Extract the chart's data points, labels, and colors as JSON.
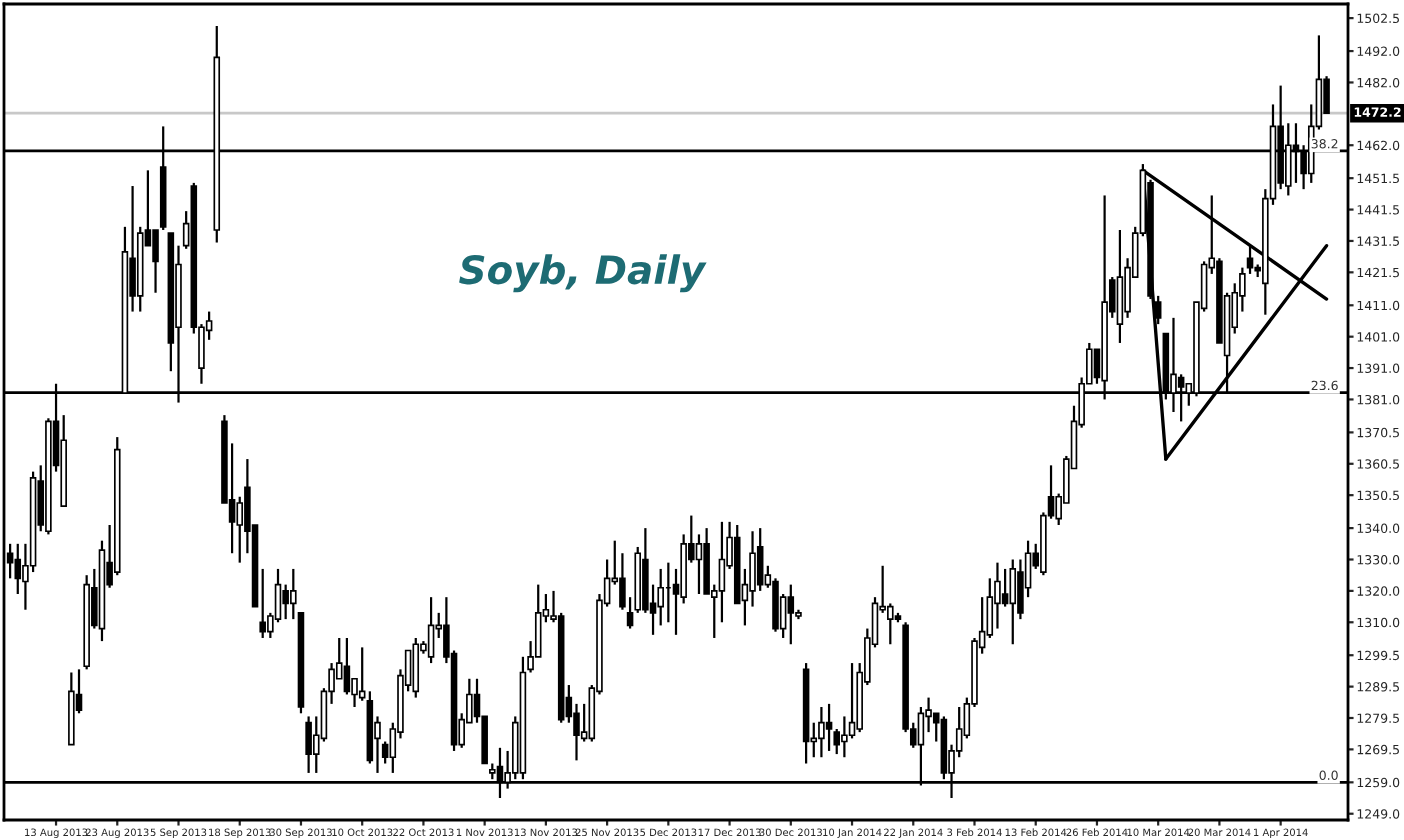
{
  "chart_data": {
    "type": "candlestick",
    "title": "Soyb, Daily",
    "categories": [
      null,
      null,
      null,
      null,
      null,
      null,
      "13 Aug 2013",
      null,
      null,
      null,
      null,
      null,
      null,
      null,
      "23 Aug 2013",
      null,
      null,
      null,
      null,
      null,
      null,
      null,
      "5 Sep 2013",
      null,
      null,
      null,
      null,
      null,
      null,
      null,
      "18 Sep 2013",
      null,
      null,
      null,
      null,
      null,
      null,
      null,
      "30 Sep 2013",
      null,
      null,
      null,
      null,
      null,
      null,
      null,
      "10 Oct 2013",
      null,
      null,
      null,
      null,
      null,
      null,
      null,
      "22 Oct 2013",
      null,
      null,
      null,
      null,
      null,
      null,
      null,
      "1 Nov 2013",
      null,
      null,
      null,
      null,
      null,
      null,
      null,
      "13 Nov 2013",
      null,
      null,
      null,
      null,
      null,
      null,
      null,
      "25 Nov 2013",
      null,
      null,
      null,
      null,
      null,
      null,
      null,
      "5 Dec 2013",
      null,
      null,
      null,
      null,
      null,
      null,
      null,
      "17 Dec 2013",
      null,
      null,
      null,
      null,
      null,
      null,
      null,
      "30 Dec 2013",
      null,
      null,
      null,
      null,
      null,
      null,
      null,
      "10 Jan 2014",
      null,
      null,
      null,
      null,
      null,
      null,
      null,
      "22 Jan 2014",
      null,
      null,
      null,
      null,
      null,
      null,
      null,
      "3 Feb 2014",
      null,
      null,
      null,
      null,
      null,
      null,
      null,
      "13 Feb 2014",
      null,
      null,
      null,
      null,
      null,
      null,
      null,
      "26 Feb 2014",
      null,
      null,
      null,
      null,
      null,
      null,
      null,
      "10 Mar 2014",
      null,
      null,
      null,
      null,
      null,
      null,
      null,
      "20 Mar 2014",
      null,
      null,
      null,
      null,
      null,
      null,
      null,
      "1 Apr 2014",
      null,
      null,
      null,
      null,
      null,
      null
    ],
    "ohlc": [
      [
        1332,
        1335,
        1324,
        1329
      ],
      [
        1330,
        1335,
        1319,
        1324
      ],
      [
        1323,
        1335,
        1314,
        1328
      ],
      [
        1328,
        1358,
        1326,
        1356
      ],
      [
        1355,
        1360,
        1339,
        1341
      ],
      [
        1339,
        1375,
        1338,
        1374
      ],
      [
        1374,
        1386,
        1358,
        1360
      ],
      [
        1347,
        1376,
        1347,
        1368
      ],
      [
        1271,
        1294,
        1271,
        1288
      ],
      [
        1287,
        1295,
        1281,
        1282
      ],
      [
        1296,
        1325,
        1295,
        1322
      ],
      [
        1321,
        1327,
        1308,
        1309
      ],
      [
        1308,
        1336,
        1304,
        1333
      ],
      [
        1329,
        1341,
        1321,
        1322
      ],
      [
        1326,
        1369,
        1325,
        1365
      ],
      [
        1383,
        1436,
        1383,
        1428
      ],
      [
        1426,
        1449,
        1409,
        1414
      ],
      [
        1414,
        1436,
        1409,
        1434
      ],
      [
        1435,
        1454,
        1430,
        1430
      ],
      [
        1435,
        1435,
        1415,
        1425
      ],
      [
        1455,
        1468,
        1435,
        1436
      ],
      [
        1434,
        1434,
        1390,
        1399
      ],
      [
        1404,
        1430,
        1380,
        1424
      ],
      [
        1430,
        1441,
        1429,
        1437
      ],
      [
        1449,
        1450,
        1402,
        1404
      ],
      [
        1391,
        1405,
        1386,
        1404
      ],
      [
        1403,
        1409,
        1400,
        1406
      ],
      [
        1435,
        1500,
        1431,
        1490
      ],
      [
        1374,
        1376,
        1348,
        1348
      ],
      [
        1349,
        1367,
        1332,
        1342
      ],
      [
        1341,
        1350,
        1329,
        1348
      ],
      [
        1353,
        1362,
        1332,
        1339
      ],
      [
        1341,
        1341,
        1315,
        1315
      ],
      [
        1310,
        1327,
        1305,
        1307
      ],
      [
        1307,
        1313,
        1305,
        1312
      ],
      [
        1311,
        1327,
        1310,
        1322
      ],
      [
        1320,
        1322,
        1311,
        1316
      ],
      [
        1316,
        1327,
        1311,
        1320
      ],
      [
        1313,
        1313,
        1281,
        1283
      ],
      [
        1278,
        1280,
        1262,
        1268
      ],
      [
        1268,
        1280,
        1262,
        1274
      ],
      [
        1273,
        1289,
        1272,
        1288
      ],
      [
        1288,
        1297,
        1284,
        1295
      ],
      [
        1292,
        1305,
        1292,
        1297
      ],
      [
        1296,
        1305,
        1287,
        1288
      ],
      [
        1287,
        1292,
        1283,
        1292
      ],
      [
        1286,
        1302,
        1285,
        1288
      ],
      [
        1285,
        1288,
        1265,
        1266
      ],
      [
        1273,
        1280,
        1262,
        1278
      ],
      [
        1271,
        1272,
        1265,
        1267
      ],
      [
        1267,
        1278,
        1262,
        1276
      ],
      [
        1275,
        1295,
        1273,
        1293
      ],
      [
        1290,
        1301,
        1288,
        1301
      ],
      [
        1288,
        1305,
        1286,
        1303
      ],
      [
        1301,
        1304,
        1300,
        1303
      ],
      [
        1299,
        1318,
        1297,
        1309
      ],
      [
        1308,
        1313,
        1305,
        1309
      ],
      [
        1309,
        1318,
        1297,
        1299
      ],
      [
        1300,
        1301,
        1269,
        1271
      ],
      [
        1271,
        1281,
        1270,
        1279
      ],
      [
        1278,
        1292,
        1278,
        1287
      ],
      [
        1287,
        1292,
        1278,
        1280
      ],
      [
        1280,
        1280,
        1265,
        1265
      ],
      [
        1262,
        1265,
        1260,
        1263
      ],
      [
        1264,
        1270,
        1254,
        1259
      ],
      [
        1259,
        1269,
        1257,
        1262
      ],
      [
        1262,
        1280,
        1260,
        1278
      ],
      [
        1262,
        1299,
        1260,
        1294
      ],
      [
        1295,
        1304,
        1294,
        1299
      ],
      [
        1299,
        1322,
        1299,
        1313
      ],
      [
        1312,
        1319,
        1310,
        1314
      ],
      [
        1311,
        1320,
        1310,
        1312
      ],
      [
        1312,
        1313,
        1278,
        1279
      ],
      [
        1286,
        1290,
        1278,
        1280
      ],
      [
        1281,
        1284,
        1266,
        1274
      ],
      [
        1273,
        1284,
        1272,
        1275
      ],
      [
        1273,
        1290,
        1272,
        1289
      ],
      [
        1288,
        1319,
        1287,
        1317
      ],
      [
        1316,
        1330,
        1315,
        1324
      ],
      [
        1323,
        1336,
        1322,
        1324
      ],
      [
        1324,
        1332,
        1314,
        1315
      ],
      [
        1313,
        1318,
        1308,
        1309
      ],
      [
        1314,
        1334,
        1313,
        1332
      ],
      [
        1330,
        1340,
        1313,
        1314
      ],
      [
        1316,
        1322,
        1306,
        1313
      ],
      [
        1315,
        1327,
        1309,
        1321
      ],
      [
        1321,
        1329,
        1310,
        1321
      ],
      [
        1322,
        1327,
        1306,
        1319
      ],
      [
        1318,
        1338,
        1316,
        1335
      ],
      [
        1335,
        1344,
        1329,
        1330
      ],
      [
        1330,
        1338,
        1319,
        1335
      ],
      [
        1335,
        1340,
        1319,
        1319
      ],
      [
        1318,
        1322,
        1305,
        1320
      ],
      [
        1320,
        1342,
        1310,
        1330
      ],
      [
        1328,
        1342,
        1327,
        1337
      ],
      [
        1337,
        1341,
        1316,
        1316
      ],
      [
        1317,
        1327,
        1309,
        1322
      ],
      [
        1320,
        1339,
        1315,
        1332
      ],
      [
        1334,
        1340,
        1320,
        1322
      ],
      [
        1322,
        1328,
        1321,
        1325
      ],
      [
        1323,
        1324,
        1307,
        1308
      ],
      [
        1308,
        1319,
        1305,
        1318
      ],
      [
        1318,
        1322,
        1303,
        1313
      ],
      [
        1312,
        1314,
        1311,
        1313
      ],
      [
        1295,
        1297,
        1265,
        1272
      ],
      [
        1272,
        1278,
        1267,
        1273
      ],
      [
        1273,
        1283,
        1267,
        1278
      ],
      [
        1278,
        1284,
        1269,
        1276
      ],
      [
        1275,
        1276,
        1268,
        1271
      ],
      [
        1272,
        1280,
        1267,
        1274
      ],
      [
        1274,
        1297,
        1273,
        1278
      ],
      [
        1276,
        1297,
        1275,
        1294
      ],
      [
        1291,
        1308,
        1290,
        1305
      ],
      [
        1303,
        1318,
        1302,
        1316
      ],
      [
        1314,
        1328,
        1313,
        1315
      ],
      [
        1311,
        1316,
        1303,
        1315
      ],
      [
        1312,
        1313,
        1310,
        1311
      ],
      [
        1309,
        1310,
        1275,
        1276
      ],
      [
        1276,
        1278,
        1270,
        1271
      ],
      [
        1271,
        1283,
        1258,
        1281
      ],
      [
        1280,
        1286,
        1275,
        1282
      ],
      [
        1281,
        1281,
        1272,
        1278
      ],
      [
        1279,
        1280,
        1260,
        1262
      ],
      [
        1262,
        1271,
        1254,
        1269
      ],
      [
        1269,
        1283,
        1267,
        1276
      ],
      [
        1274,
        1286,
        1273,
        1284
      ],
      [
        1284,
        1305,
        1283,
        1304
      ],
      [
        1302,
        1318,
        1300,
        1307
      ],
      [
        1306,
        1324,
        1305,
        1318
      ],
      [
        1316,
        1329,
        1308,
        1323
      ],
      [
        1319,
        1327,
        1315,
        1316
      ],
      [
        1316,
        1330,
        1303,
        1327
      ],
      [
        1326,
        1330,
        1311,
        1313
      ],
      [
        1321,
        1336,
        1318,
        1332
      ],
      [
        1332,
        1335,
        1327,
        1328
      ],
      [
        1326,
        1345,
        1325,
        1344
      ],
      [
        1350,
        1360,
        1343,
        1344
      ],
      [
        1343,
        1351,
        1341,
        1350
      ],
      [
        1348,
        1363,
        1348,
        1362
      ],
      [
        1359,
        1379,
        1359,
        1374
      ],
      [
        1373,
        1388,
        1372,
        1386
      ],
      [
        1386,
        1399,
        1386,
        1397
      ],
      [
        1397,
        1397,
        1386,
        1388
      ],
      [
        1387,
        1446,
        1381,
        1412
      ],
      [
        1419,
        1420,
        1407,
        1409
      ],
      [
        1405,
        1435,
        1399,
        1420
      ],
      [
        1409,
        1426,
        1407,
        1423
      ],
      [
        1420,
        1436,
        1420,
        1434
      ],
      [
        1434,
        1456,
        1433,
        1454
      ],
      [
        1450,
        1451,
        1413,
        1414
      ],
      [
        1412,
        1414,
        1405,
        1407
      ],
      [
        1402,
        1402,
        1381,
        1383
      ],
      [
        1383,
        1407,
        1377,
        1389
      ],
      [
        1388,
        1389,
        1374,
        1385
      ],
      [
        1383,
        1386,
        1379,
        1386
      ],
      [
        1383,
        1412,
        1382,
        1412
      ],
      [
        1410,
        1425,
        1409,
        1424
      ],
      [
        1423,
        1446,
        1421,
        1426
      ],
      [
        1425,
        1426,
        1399,
        1399
      ],
      [
        1395,
        1415,
        1383,
        1414
      ],
      [
        1404,
        1418,
        1402,
        1415
      ],
      [
        1414,
        1423,
        1409,
        1421
      ],
      [
        1426,
        1430,
        1421,
        1423
      ],
      [
        1423,
        1424,
        1420,
        1422
      ],
      [
        1418,
        1448,
        1408,
        1445
      ],
      [
        1445,
        1475,
        1443,
        1468
      ],
      [
        1468,
        1481,
        1448,
        1450
      ],
      [
        1449,
        1469,
        1446,
        1462
      ],
      [
        1462,
        1469,
        1450,
        1460
      ],
      [
        1460,
        1462,
        1448,
        1453
      ],
      [
        1453,
        1475,
        1450,
        1468
      ],
      [
        1468,
        1497,
        1467,
        1483
      ],
      [
        1483,
        1484,
        1472,
        1472.2
      ]
    ],
    "series": [
      {
        "type": "line",
        "color": "#000000",
        "values": [
          null,
          null,
          null,
          null,
          null,
          null,
          null,
          null,
          null,
          null,
          null,
          null,
          null,
          null,
          null,
          null,
          null,
          null,
          null,
          null,
          null,
          null,
          null,
          null,
          null,
          null,
          null,
          null,
          null,
          null,
          null,
          null,
          null,
          null,
          null,
          null,
          null,
          null,
          null,
          null,
          null,
          null,
          null,
          null,
          null,
          null,
          null,
          null,
          null,
          null,
          null,
          null,
          null,
          null,
          null,
          null,
          null,
          null,
          null,
          null,
          null,
          null,
          null,
          null,
          null,
          null,
          null,
          null,
          null,
          null,
          null,
          null,
          null,
          null,
          null,
          null,
          null,
          null,
          null,
          null,
          null,
          null,
          null,
          null,
          null,
          null,
          null,
          null,
          null,
          null,
          null,
          null,
          null,
          null,
          null,
          null,
          null,
          null,
          null,
          null,
          null,
          null,
          null,
          null,
          null,
          null,
          null,
          null,
          null,
          null,
          null,
          null,
          null,
          null,
          null,
          null,
          null,
          null,
          null,
          null,
          null,
          null,
          null,
          null,
          null,
          null,
          null,
          null,
          null,
          null,
          null,
          null,
          null,
          null,
          null,
          null,
          null,
          null,
          null,
          null,
          null,
          null,
          null,
          null,
          null,
          null,
          null,
          null,
          1454,
          null,
          null,
          1362,
          null,
          null,
          null,
          null,
          null,
          null,
          null,
          null,
          null,
          null,
          null,
          null,
          null,
          null,
          null,
          null,
          null,
          null,
          null,
          null,
          null
        ]
      },
      {
        "type": "line",
        "color": "#000000",
        "values": [
          null,
          null,
          null,
          null,
          null,
          null,
          null,
          null,
          null,
          null,
          null,
          null,
          null,
          null,
          null,
          null,
          null,
          null,
          null,
          null,
          null,
          null,
          null,
          null,
          null,
          null,
          null,
          null,
          null,
          null,
          null,
          null,
          null,
          null,
          null,
          null,
          null,
          null,
          null,
          null,
          null,
          null,
          null,
          null,
          null,
          null,
          null,
          null,
          null,
          null,
          null,
          null,
          null,
          null,
          null,
          null,
          null,
          null,
          null,
          null,
          null,
          null,
          null,
          null,
          null,
          null,
          null,
          null,
          null,
          null,
          null,
          null,
          null,
          null,
          null,
          null,
          null,
          null,
          null,
          null,
          null,
          null,
          null,
          null,
          null,
          null,
          null,
          null,
          null,
          null,
          null,
          null,
          null,
          null,
          null,
          null,
          null,
          null,
          null,
          null,
          null,
          null,
          null,
          null,
          null,
          null,
          null,
          null,
          null,
          null,
          null,
          null,
          null,
          null,
          null,
          null,
          null,
          null,
          null,
          null,
          null,
          null,
          null,
          null,
          null,
          null,
          null,
          null,
          null,
          null,
          null,
          null,
          null,
          null,
          null,
          null,
          null,
          null,
          null,
          null,
          null,
          null,
          null,
          null,
          null,
          null,
          null,
          null,
          null,
          null,
          null,
          1362,
          null,
          null,
          null,
          null,
          null,
          null,
          null,
          null,
          null,
          null,
          null,
          null,
          null,
          null,
          null,
          null,
          null,
          null,
          null,
          null,
          1430
        ]
      },
      {
        "type": "line",
        "color": "#000000",
        "values": [
          null,
          null,
          null,
          null,
          null,
          null,
          null,
          null,
          null,
          null,
          null,
          null,
          null,
          null,
          null,
          null,
          null,
          null,
          null,
          null,
          null,
          null,
          null,
          null,
          null,
          null,
          null,
          null,
          null,
          null,
          null,
          null,
          null,
          null,
          null,
          null,
          null,
          null,
          null,
          null,
          null,
          null,
          null,
          null,
          null,
          null,
          null,
          null,
          null,
          null,
          null,
          null,
          null,
          null,
          null,
          null,
          null,
          null,
          null,
          null,
          null,
          null,
          null,
          null,
          null,
          null,
          null,
          null,
          null,
          null,
          null,
          null,
          null,
          null,
          null,
          null,
          null,
          null,
          null,
          null,
          null,
          null,
          null,
          null,
          null,
          null,
          null,
          null,
          null,
          null,
          null,
          null,
          null,
          null,
          null,
          null,
          null,
          null,
          null,
          null,
          null,
          null,
          null,
          null,
          null,
          null,
          null,
          null,
          null,
          null,
          null,
          null,
          null,
          null,
          null,
          null,
          null,
          null,
          null,
          null,
          null,
          null,
          null,
          null,
          null,
          null,
          null,
          null,
          null,
          null,
          null,
          null,
          null,
          null,
          null,
          null,
          null,
          null,
          null,
          null,
          null,
          null,
          null,
          null,
          null,
          null,
          null,
          null,
          1454,
          null,
          null,
          null,
          null,
          null,
          null,
          null,
          null,
          null,
          null,
          null,
          null,
          null,
          null,
          null,
          null,
          null,
          null,
          null,
          null,
          null,
          null,
          null,
          1413
        ]
      }
    ],
    "annotations": [
      {
        "text": "0.0",
        "y": 1259.0
      },
      {
        "text": "23.6",
        "y": 1383.2
      },
      {
        "text": "38.2",
        "y": 1460.2
      }
    ],
    "ref_lines": [
      {
        "axis": "y",
        "value": 1259.0,
        "color": "#000000"
      },
      {
        "axis": "y",
        "value": 1383.2,
        "color": "#000000"
      },
      {
        "axis": "y",
        "value": 1460.2,
        "color": "#000000"
      },
      {
        "axis": "y",
        "value": 1472.2,
        "label": "1472.2",
        "color": "#c8c8c8"
      }
    ],
    "ylim": [
      1247,
      1507
    ],
    "yticks": [
      {
        "value": 1249.0,
        "label": "1249.0"
      },
      {
        "value": 1259.0,
        "label": "1259.0"
      },
      {
        "value": 1269.5,
        "label": "1269.5"
      },
      {
        "value": 1279.5,
        "label": "1279.5"
      },
      {
        "value": 1289.5,
        "label": "1289.5"
      },
      {
        "value": 1299.5,
        "label": "1299.5"
      },
      {
        "value": 1310.0,
        "label": "1310.0"
      },
      {
        "value": 1320.0,
        "label": "1320.0"
      },
      {
        "value": 1330.0,
        "label": "1330.0"
      },
      {
        "value": 1340.0,
        "label": "1340.0"
      },
      {
        "value": 1350.5,
        "label": "1350.5"
      },
      {
        "value": 1360.5,
        "label": "1360.5"
      },
      {
        "value": 1370.5,
        "label": "1370.5"
      },
      {
        "value": 1381.0,
        "label": "1381.0"
      },
      {
        "value": 1391.0,
        "label": "1391.0"
      },
      {
        "value": 1401.0,
        "label": "1401.0"
      },
      {
        "value": 1411.0,
        "label": "1411.0"
      },
      {
        "value": 1421.5,
        "label": "1421.5"
      },
      {
        "value": 1431.5,
        "label": "1431.5"
      },
      {
        "value": 1441.5,
        "label": "1441.5"
      },
      {
        "value": 1451.5,
        "label": "1451.5"
      },
      {
        "value": 1462.0,
        "label": "1462.0"
      },
      {
        "value": 1482.0,
        "label": "1482.0"
      },
      {
        "value": 1492.0,
        "label": "1492.0"
      },
      {
        "value": 1502.5,
        "label": "1502.5"
      }
    ]
  }
}
